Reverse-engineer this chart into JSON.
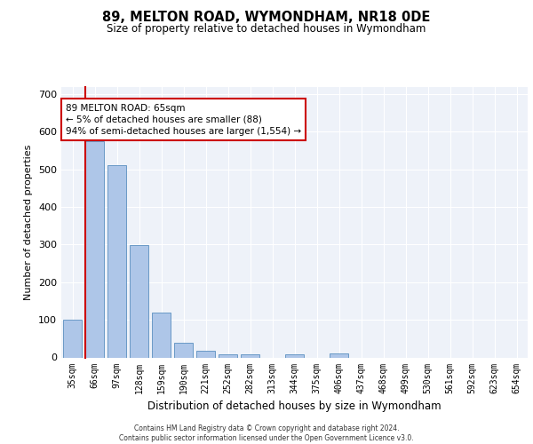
{
  "title_line1": "89, MELTON ROAD, WYMONDHAM, NR18 0DE",
  "title_line2": "Size of property relative to detached houses in Wymondham",
  "xlabel": "Distribution of detached houses by size in Wymondham",
  "ylabel": "Number of detached properties",
  "categories": [
    "35sqm",
    "66sqm",
    "97sqm",
    "128sqm",
    "159sqm",
    "190sqm",
    "221sqm",
    "252sqm",
    "282sqm",
    "313sqm",
    "344sqm",
    "375sqm",
    "406sqm",
    "437sqm",
    "468sqm",
    "499sqm",
    "530sqm",
    "561sqm",
    "592sqm",
    "623sqm",
    "654sqm"
  ],
  "values": [
    100,
    575,
    510,
    298,
    120,
    38,
    17,
    9,
    8,
    0,
    8,
    0,
    10,
    0,
    0,
    0,
    0,
    0,
    0,
    0,
    0
  ],
  "bar_color": "#aec6e8",
  "bar_edge_color": "#5a8fc0",
  "highlight_bar_index": 1,
  "highlight_color": "#cc0000",
  "annotation_box_text": "89 MELTON ROAD: 65sqm\n← 5% of detached houses are smaller (88)\n94% of semi-detached houses are larger (1,554) →",
  "ylim": [
    0,
    720
  ],
  "yticks": [
    0,
    100,
    200,
    300,
    400,
    500,
    600,
    700
  ],
  "background_color": "#eef2f9",
  "grid_color": "#ffffff",
  "footer_line1": "Contains HM Land Registry data © Crown copyright and database right 2024.",
  "footer_line2": "Contains public sector information licensed under the Open Government Licence v3.0."
}
